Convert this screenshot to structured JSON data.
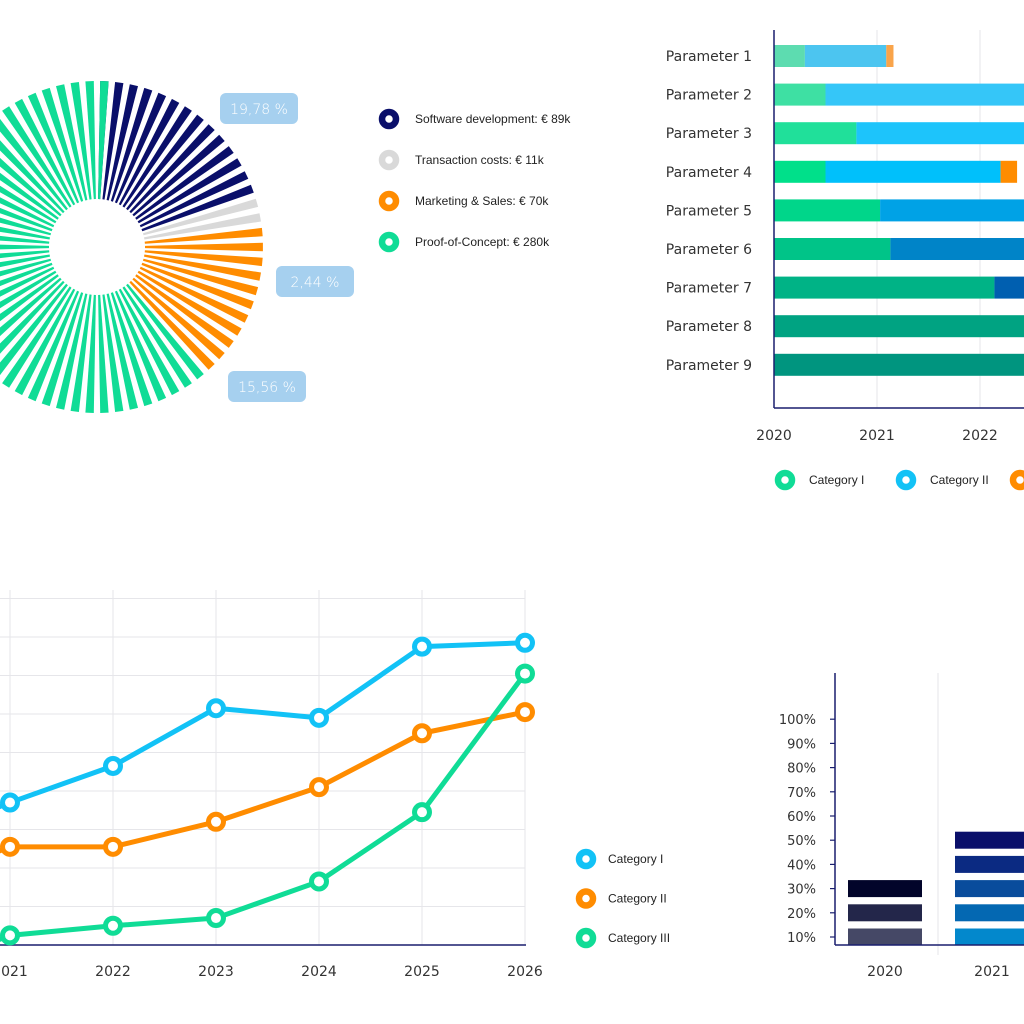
{
  "chart_data": [
    {
      "type": "pie",
      "style": "radial-rays-donut",
      "title": "",
      "slices": [
        {
          "label": "Software development: € 89k",
          "value": 89,
          "percent_label": "19,78 %",
          "color": "#0a0f6a"
        },
        {
          "label": "Transaction costs:  € 11k",
          "value": 11,
          "percent_label": "2,44 %",
          "color": "#d9d9d9"
        },
        {
          "label": "Marketing & Sales:  € 70k",
          "value": 70,
          "percent_label": "15,56 %",
          "color": "#ff8c00"
        },
        {
          "label": "Proof-of-Concept:  € 280k",
          "value": 280,
          "percent_label": null,
          "color": "#10dc96"
        }
      ],
      "label_color": "#a6d0ef",
      "legend_position": "right"
    },
    {
      "type": "bar",
      "orientation": "horizontal-stacked-range",
      "title": "",
      "categories": [
        "Parameter 1",
        "Parameter 2",
        "Parameter 3",
        "Parameter 4",
        "Parameter 5",
        "Parameter 6",
        "Parameter 7",
        "Parameter 8",
        "Parameter 9"
      ],
      "x_ticks": [
        "2020",
        "2021",
        "2022"
      ],
      "xlim": [
        2020,
        2022.45
      ],
      "grid": true,
      "legend": [
        {
          "name": "Category I",
          "color": "#10dc96"
        },
        {
          "name": "Category II",
          "color": "#12c2f6"
        },
        {
          "name": "",
          "color": "#ff8c00"
        }
      ],
      "legend_position": "bottom",
      "rows": [
        {
          "segments": [
            {
              "category": 0,
              "start": 2020,
              "end": 2020.3,
              "color": "#5ddcb0"
            },
            {
              "category": 1,
              "start": 2020.3,
              "end": 2021.09,
              "color": "#4cc5f0"
            },
            {
              "category": 2,
              "start": 2021.09,
              "end": 2021.16,
              "color": "#f9a44a"
            }
          ]
        },
        {
          "segments": [
            {
              "category": 0,
              "start": 2020,
              "end": 2020.5,
              "color": "#3ee0a3"
            },
            {
              "category": 1,
              "start": 2020.5,
              "end": 2022.45,
              "color": "#35c6f8"
            }
          ]
        },
        {
          "segments": [
            {
              "category": 0,
              "start": 2020,
              "end": 2020.8,
              "color": "#20e09a"
            },
            {
              "category": 1,
              "start": 2020.8,
              "end": 2022.45,
              "color": "#1dc4fb"
            }
          ]
        },
        {
          "segments": [
            {
              "category": 0,
              "start": 2020,
              "end": 2020.5,
              "color": "#00e08a"
            },
            {
              "category": 1,
              "start": 2020.5,
              "end": 2022.2,
              "color": "#00c0fb"
            },
            {
              "category": 2,
              "start": 2022.2,
              "end": 2022.36,
              "color": "#ff8c00"
            }
          ]
        },
        {
          "segments": [
            {
              "category": 0,
              "start": 2020,
              "end": 2021.03,
              "color": "#00d68a"
            },
            {
              "category": 1,
              "start": 2021.03,
              "end": 2022.45,
              "color": "#00a2e6"
            }
          ]
        },
        {
          "segments": [
            {
              "category": 0,
              "start": 2020,
              "end": 2021.13,
              "color": "#00c488"
            },
            {
              "category": 1,
              "start": 2021.13,
              "end": 2022.45,
              "color": "#0084c8"
            }
          ]
        },
        {
          "segments": [
            {
              "category": 0,
              "start": 2020,
              "end": 2022.14,
              "color": "#00b386"
            },
            {
              "category": 1,
              "start": 2022.14,
              "end": 2022.45,
              "color": "#005fb0"
            }
          ]
        },
        {
          "segments": [
            {
              "category": 0,
              "start": 2020,
              "end": 2022.45,
              "color": "#00a382"
            }
          ]
        },
        {
          "segments": [
            {
              "category": 0,
              "start": 2020,
              "end": 2022.45,
              "color": "#00957f"
            }
          ]
        }
      ]
    },
    {
      "type": "line",
      "title": "",
      "x": [
        "2021",
        "2022",
        "2023",
        "2024",
        "2025",
        "2026"
      ],
      "ylim": [
        0,
        9
      ],
      "grid": true,
      "legend_position": "right",
      "series": [
        {
          "name": "Category I",
          "color": "#12c2f6",
          "values": [
            3.7,
            4.65,
            6.15,
            5.9,
            7.75,
            7.85
          ]
        },
        {
          "name": "Category II",
          "color": "#ff8c00",
          "values": [
            2.55,
            2.55,
            3.2,
            4.1,
            5.5,
            6.05
          ]
        },
        {
          "name": "Category III",
          "color": "#10dc96",
          "values": [
            0.25,
            0.5,
            0.7,
            1.65,
            3.45,
            7.05
          ]
        }
      ]
    },
    {
      "type": "bar",
      "style": "stacked-blocks",
      "title": "",
      "categories": [
        "2020",
        "2021"
      ],
      "values": [
        30,
        50
      ],
      "y_ticks": [
        "10%",
        "20%",
        "30%",
        "40%",
        "50%",
        "60%",
        "70%",
        "80%",
        "90%",
        "100%"
      ],
      "ylim": [
        0,
        100
      ],
      "block_colors": [
        [
          "#454866",
          "#23264a",
          "#02042a"
        ],
        [
          "#0388cc",
          "#0468b2",
          "#094c9c",
          "#0b2a82",
          "#0a0f6a"
        ]
      ]
    }
  ],
  "colors": {
    "axis": "#1a1f6e",
    "grid": "#e6e6ea"
  }
}
